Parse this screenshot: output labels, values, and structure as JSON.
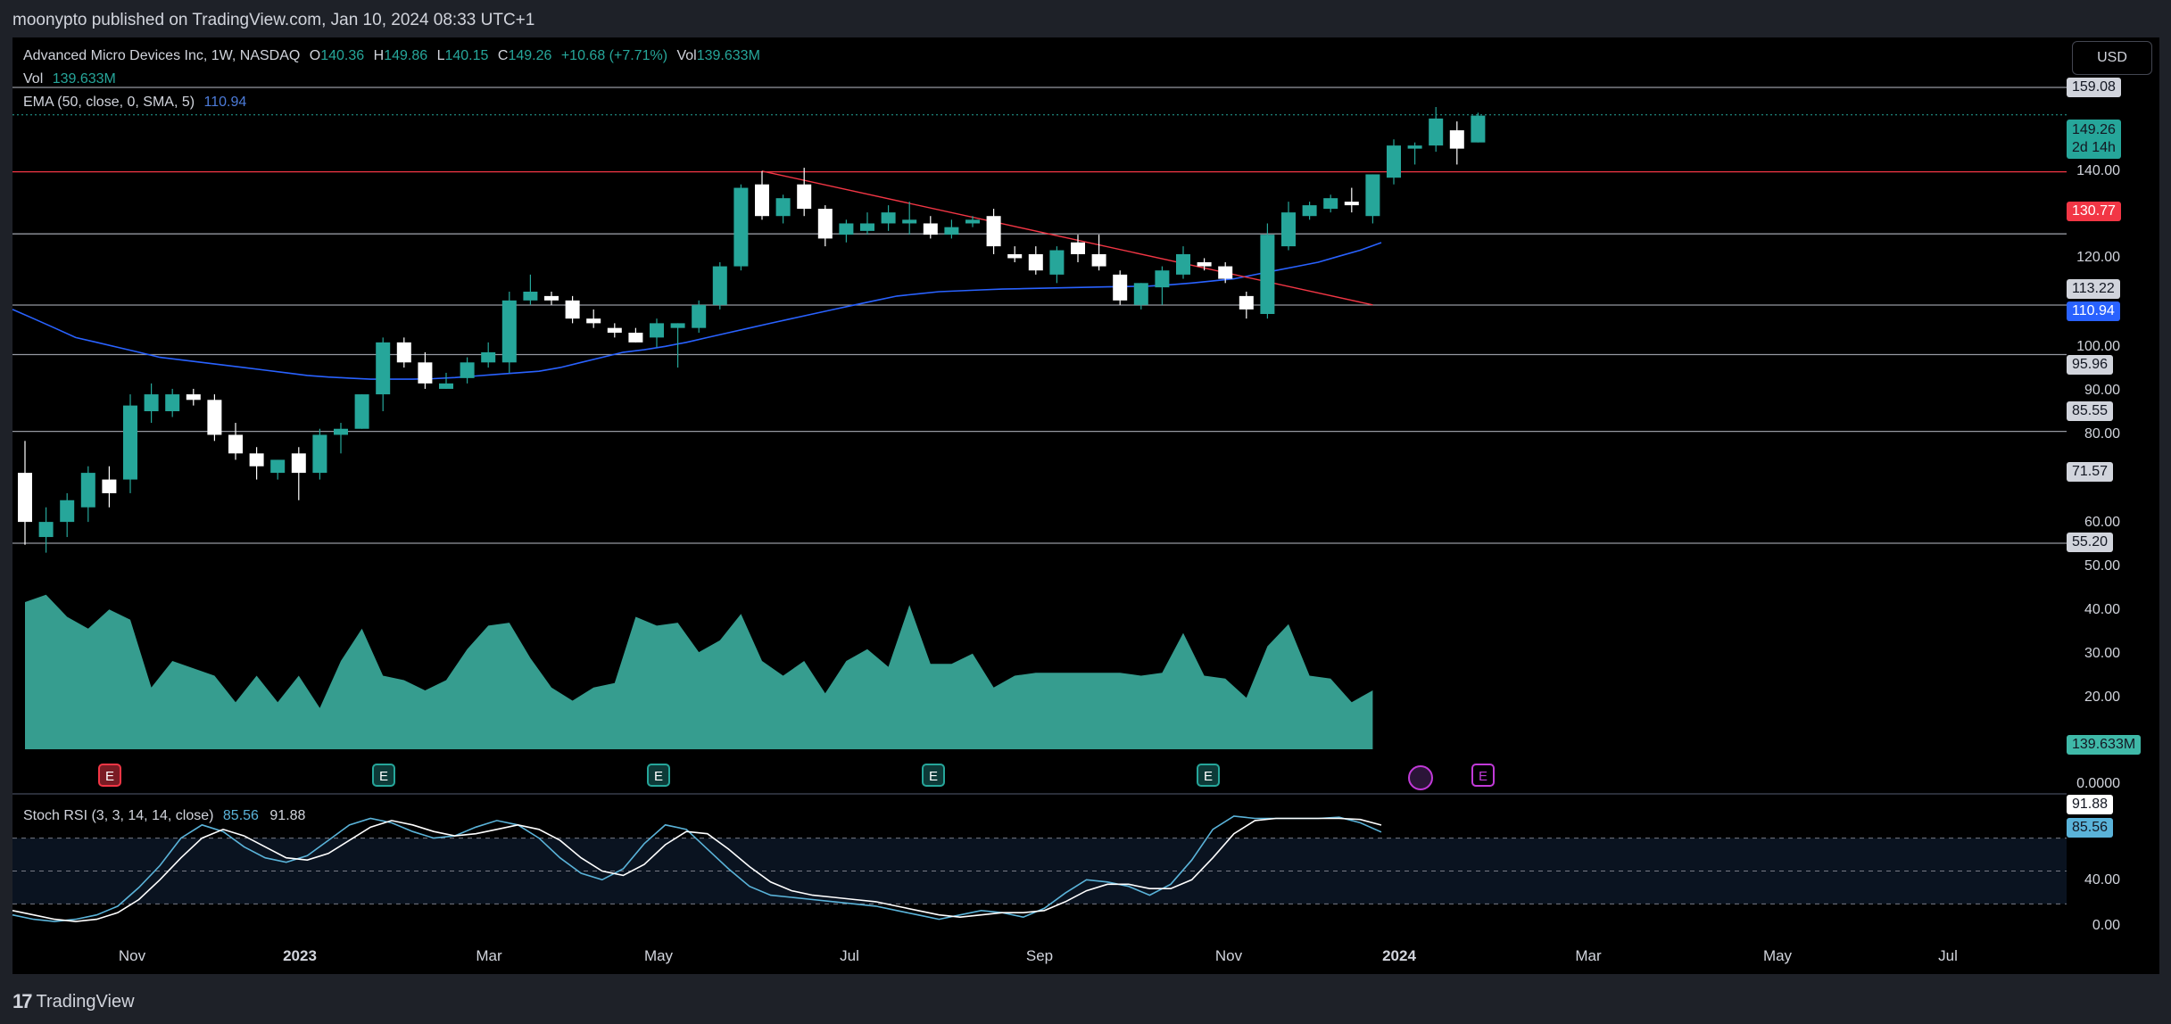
{
  "header": {
    "published": "moonypto published on TradingView.com, Jan 10, 2024 08:33 UTC+1"
  },
  "legend": {
    "symbol": "Advanced Micro Devices Inc, 1W, NASDAQ",
    "o_label": "O",
    "o_value": "140.36",
    "h_label": "H",
    "h_value": "149.86",
    "l_label": "L",
    "l_value": "140.15",
    "c_label": "C",
    "c_value": "149.26",
    "change": "+10.68 (+7.71%)",
    "vol_label": "Vol",
    "vol_value": "139.633M",
    "vol_row_label": "Vol",
    "vol_row_value": "139.633M",
    "ema_label": "EMA (50, close, 0, SMA, 5)",
    "ema_value": "110.94",
    "stoch_label": "Stoch RSI (3, 3, 14, 14, close)",
    "stoch_k": "85.56",
    "stoch_d": "91.88"
  },
  "currency_button": "USD",
  "price_axis": [
    "140.00",
    "120.00",
    "100.00",
    "90.00",
    "80.00",
    "60.00",
    "50.00",
    "40.00",
    "30.00",
    "20.00",
    "0.0000"
  ],
  "stoch_axis": [
    "40.00",
    "0.00"
  ],
  "price_labels": {
    "h159": "159.08",
    "last": "149.26",
    "countdown": "2d 14h",
    "red": "130.77",
    "h113": "113.22",
    "ema": "110.94",
    "h95": "95.96",
    "h85": "85.55",
    "h71": "71.57",
    "h55": "55.20",
    "vol": "139.633M",
    "stoch_d": "91.88",
    "stoch_k": "85.56"
  },
  "x_axis": [
    "Nov",
    "2023",
    "Mar",
    "May",
    "Jul",
    "Sep",
    "Nov",
    "2024",
    "Mar",
    "May",
    "Jul"
  ],
  "earnings_marker": "E",
  "footer": {
    "brand": "TradingView"
  },
  "colors": {
    "up": "#26a69a",
    "down": "#ffffff",
    "ema": "#2962ff",
    "resistance": "#f23645",
    "volume": "#3fb9a8",
    "stoch_k": "#5ab3d9",
    "stoch_d": "#ffffff"
  },
  "chart_data": {
    "type": "candlestick",
    "interval": "1W",
    "candles": [
      {
        "o": 65,
        "h": 70,
        "l": 55,
        "c": 58
      },
      {
        "o": 56,
        "h": 60,
        "l": 54,
        "c": 58
      },
      {
        "o": 58,
        "h": 62,
        "l": 56,
        "c": 61
      },
      {
        "o": 60,
        "h": 66,
        "l": 58,
        "c": 65
      },
      {
        "o": 64,
        "h": 66,
        "l": 60,
        "c": 62
      },
      {
        "o": 64,
        "h": 78,
        "l": 62,
        "c": 76
      },
      {
        "o": 75,
        "h": 80,
        "l": 73,
        "c": 78
      },
      {
        "o": 75,
        "h": 79,
        "l": 74,
        "c": 78
      },
      {
        "o": 78,
        "h": 79,
        "l": 76,
        "c": 77
      },
      {
        "o": 77,
        "h": 78,
        "l": 70,
        "c": 71
      },
      {
        "o": 71,
        "h": 73,
        "l": 67,
        "c": 68
      },
      {
        "o": 68,
        "h": 69,
        "l": 64,
        "c": 66
      },
      {
        "o": 65,
        "h": 67,
        "l": 64,
        "c": 67
      },
      {
        "o": 68,
        "h": 69,
        "l": 61,
        "c": 65
      },
      {
        "o": 65,
        "h": 72,
        "l": 64,
        "c": 71
      },
      {
        "o": 71,
        "h": 73,
        "l": 68,
        "c": 72
      },
      {
        "o": 72,
        "h": 78,
        "l": 72,
        "c": 78
      },
      {
        "o": 78,
        "h": 89,
        "l": 75,
        "c": 88
      },
      {
        "o": 88,
        "h": 89,
        "l": 83,
        "c": 84
      },
      {
        "o": 84,
        "h": 86,
        "l": 79,
        "c": 80
      },
      {
        "o": 79,
        "h": 82,
        "l": 79,
        "c": 80
      },
      {
        "o": 81,
        "h": 85,
        "l": 80,
        "c": 84
      },
      {
        "o": 84,
        "h": 88,
        "l": 83,
        "c": 86
      },
      {
        "o": 84,
        "h": 99,
        "l": 82,
        "c": 97
      },
      {
        "o": 97,
        "h": 103,
        "l": 96,
        "c": 99
      },
      {
        "o": 98,
        "h": 99,
        "l": 96,
        "c": 97
      },
      {
        "o": 97,
        "h": 98,
        "l": 92,
        "c": 93
      },
      {
        "o": 93,
        "h": 95,
        "l": 91,
        "c": 92
      },
      {
        "o": 91,
        "h": 92,
        "l": 89,
        "c": 90
      },
      {
        "o": 90,
        "h": 91,
        "l": 88,
        "c": 88
      },
      {
        "o": 89,
        "h": 93,
        "l": 87,
        "c": 92
      },
      {
        "o": 91,
        "h": 92,
        "l": 83,
        "c": 92
      },
      {
        "o": 91,
        "h": 97,
        "l": 90,
        "c": 96
      },
      {
        "o": 96,
        "h": 106,
        "l": 95,
        "c": 105
      },
      {
        "o": 105,
        "h": 127,
        "l": 104,
        "c": 126
      },
      {
        "o": 127,
        "h": 131,
        "l": 117,
        "c": 118
      },
      {
        "o": 118,
        "h": 124,
        "l": 116,
        "c": 123
      },
      {
        "o": 127,
        "h": 132,
        "l": 118,
        "c": 120
      },
      {
        "o": 120,
        "h": 121,
        "l": 110,
        "c": 112
      },
      {
        "o": 113,
        "h": 117,
        "l": 111,
        "c": 116
      },
      {
        "o": 114,
        "h": 119,
        "l": 113,
        "c": 116
      },
      {
        "o": 116,
        "h": 121,
        "l": 114,
        "c": 119
      },
      {
        "o": 116,
        "h": 122,
        "l": 113,
        "c": 117
      },
      {
        "o": 116,
        "h": 118,
        "l": 112,
        "c": 113
      },
      {
        "o": 113,
        "h": 117,
        "l": 112,
        "c": 115
      },
      {
        "o": 116,
        "h": 118,
        "l": 115,
        "c": 117
      },
      {
        "o": 118,
        "h": 120,
        "l": 108,
        "c": 110
      },
      {
        "o": 108,
        "h": 110,
        "l": 106,
        "c": 107
      },
      {
        "o": 108,
        "h": 110,
        "l": 103,
        "c": 104
      },
      {
        "o": 103,
        "h": 110,
        "l": 101,
        "c": 109
      },
      {
        "o": 111,
        "h": 113,
        "l": 106,
        "c": 108
      },
      {
        "o": 108,
        "h": 113,
        "l": 104,
        "c": 105
      },
      {
        "o": 103,
        "h": 104,
        "l": 96,
        "c": 97
      },
      {
        "o": 96,
        "h": 101,
        "l": 95,
        "c": 101
      },
      {
        "o": 100,
        "h": 105,
        "l": 96,
        "c": 104
      },
      {
        "o": 103,
        "h": 110,
        "l": 102,
        "c": 108
      },
      {
        "o": 106,
        "h": 107,
        "l": 104,
        "c": 105
      },
      {
        "o": 105,
        "h": 106,
        "l": 101,
        "c": 102
      },
      {
        "o": 98,
        "h": 99,
        "l": 93,
        "c": 95
      },
      {
        "o": 94,
        "h": 116,
        "l": 93,
        "c": 113
      },
      {
        "o": 110,
        "h": 122,
        "l": 109,
        "c": 119
      },
      {
        "o": 118,
        "h": 122,
        "l": 117,
        "c": 121
      },
      {
        "o": 120,
        "h": 124,
        "l": 119,
        "c": 123
      },
      {
        "o": 122,
        "h": 126,
        "l": 119,
        "c": 121
      },
      {
        "o": 118,
        "h": 130,
        "l": 116,
        "c": 130
      },
      {
        "o": 129,
        "h": 141,
        "l": 127,
        "c": 139
      },
      {
        "o": 138,
        "h": 140,
        "l": 133,
        "c": 139
      },
      {
        "o": 139,
        "h": 152,
        "l": 137,
        "c": 148
      },
      {
        "o": 144,
        "h": 147,
        "l": 133,
        "c": 138
      },
      {
        "o": 140,
        "h": 150,
        "l": 140,
        "c": 149
      }
    ],
    "horizontal_levels": [
      159.08,
      130.77,
      113.22,
      95.96,
      85.55,
      71.57,
      55.2
    ],
    "ema": {
      "name": "EMA (50, close, 0, SMA, 5)",
      "last": 110.94
    },
    "trendline": {
      "from": 131,
      "to": 96
    },
    "volume_last": "139.633M",
    "stoch_rsi": {
      "k_last": 85.56,
      "d_last": 91.88,
      "bands": [
        20,
        50,
        80
      ]
    }
  }
}
